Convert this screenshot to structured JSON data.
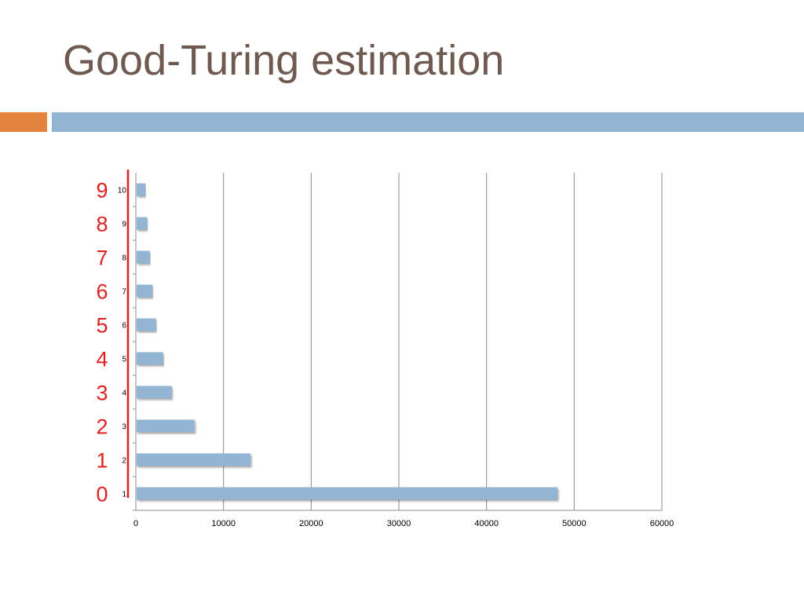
{
  "slide": {
    "title": "Good-Turing estimation"
  },
  "colors": {
    "title": "#6e5a51",
    "accent_orange": "#e3843f",
    "accent_blue": "#92b5d4",
    "bar": "#92b5d4",
    "annotation": "#e02020"
  },
  "chart_data": {
    "type": "bar",
    "orientation": "horizontal",
    "categories": [
      "1",
      "2",
      "3",
      "4",
      "5",
      "6",
      "7",
      "8",
      "9",
      "10"
    ],
    "values": [
      48000,
      13000,
      6600,
      4000,
      3000,
      2200,
      1800,
      1500,
      1200,
      1000
    ],
    "xlim": [
      0,
      60000
    ],
    "x_ticks": [
      "0",
      "10000",
      "20000",
      "30000",
      "40000",
      "50000",
      "60000"
    ],
    "grid": "vertical",
    "title": "",
    "xlabel": "",
    "ylabel": "",
    "annotations": {
      "labels": [
        "0",
        "1",
        "2",
        "3",
        "4",
        "5",
        "6",
        "7",
        "8",
        "9"
      ],
      "color": "#e02020",
      "note": "red numbers beside each category, with a red vertical line along the category axis"
    }
  }
}
